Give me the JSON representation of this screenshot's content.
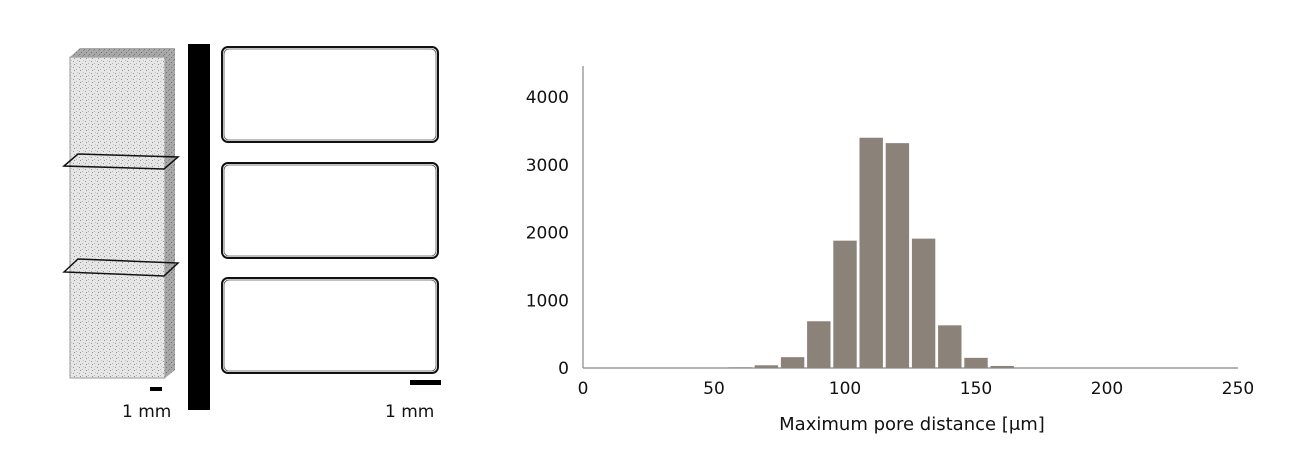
{
  "left_panel": {
    "scale_label_left": "1 mm",
    "scale_label_right": "1 mm"
  },
  "colors": {
    "bar_fill": "#8b8279",
    "axis": "#888888",
    "slice_outline": "#111111"
  },
  "chart_data": {
    "type": "bar",
    "title": "",
    "xlabel": "Maximum pore distance [μm]",
    "ylabel": "",
    "xlim": [
      0,
      250
    ],
    "ylim": [
      0,
      4400
    ],
    "xticks": [
      0,
      50,
      100,
      150,
      200,
      250
    ],
    "yticks": [
      0,
      1000,
      2000,
      3000,
      4000
    ],
    "bin_width": 10,
    "bins": [
      {
        "x": 60,
        "value": 10
      },
      {
        "x": 70,
        "value": 40
      },
      {
        "x": 80,
        "value": 160
      },
      {
        "x": 90,
        "value": 690
      },
      {
        "x": 100,
        "value": 1880
      },
      {
        "x": 110,
        "value": 3400
      },
      {
        "x": 120,
        "value": 3320
      },
      {
        "x": 130,
        "value": 1910
      },
      {
        "x": 140,
        "value": 630
      },
      {
        "x": 150,
        "value": 150
      },
      {
        "x": 160,
        "value": 30
      },
      {
        "x": 170,
        "value": 5
      }
    ]
  }
}
